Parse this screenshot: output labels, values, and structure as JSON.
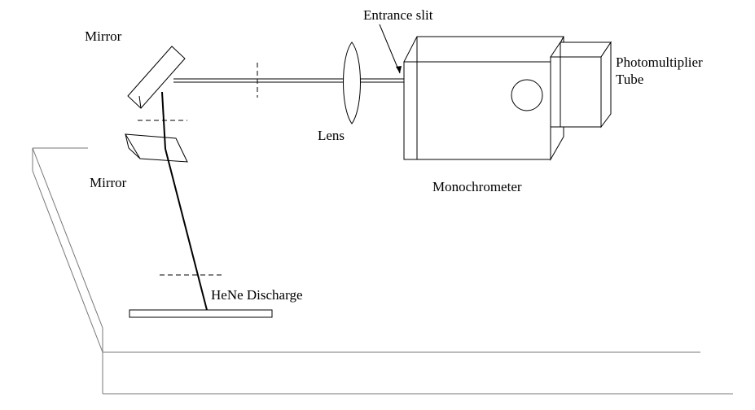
{
  "labels": {
    "mirror_top": "Mirror",
    "mirror_bottom": "Mirror",
    "entrance_slit": "Entrance slit",
    "lens": "Lens",
    "monochrometer": "Monochrometer",
    "pmt_line1": "Photomultiplier",
    "pmt_line2": "Tube",
    "hene": "HeNe Discharge"
  }
}
